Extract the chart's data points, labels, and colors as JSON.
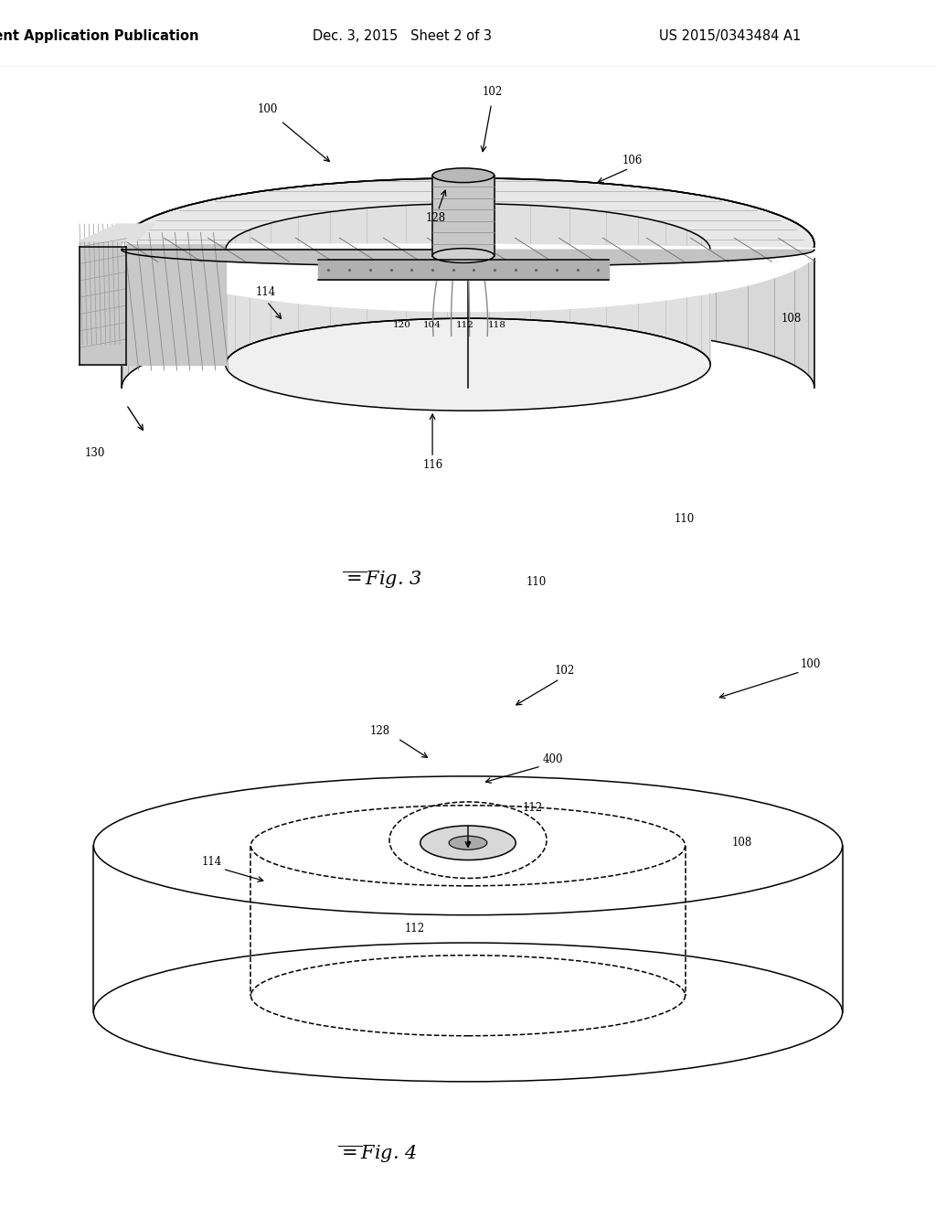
{
  "bg_color": "#ffffff",
  "line_color": "#000000",
  "header_left": "Patent Application Publication",
  "header_mid": "Dec. 3, 2015   Sheet 2 of 3",
  "header_right": "US 2015/0343484 A1"
}
